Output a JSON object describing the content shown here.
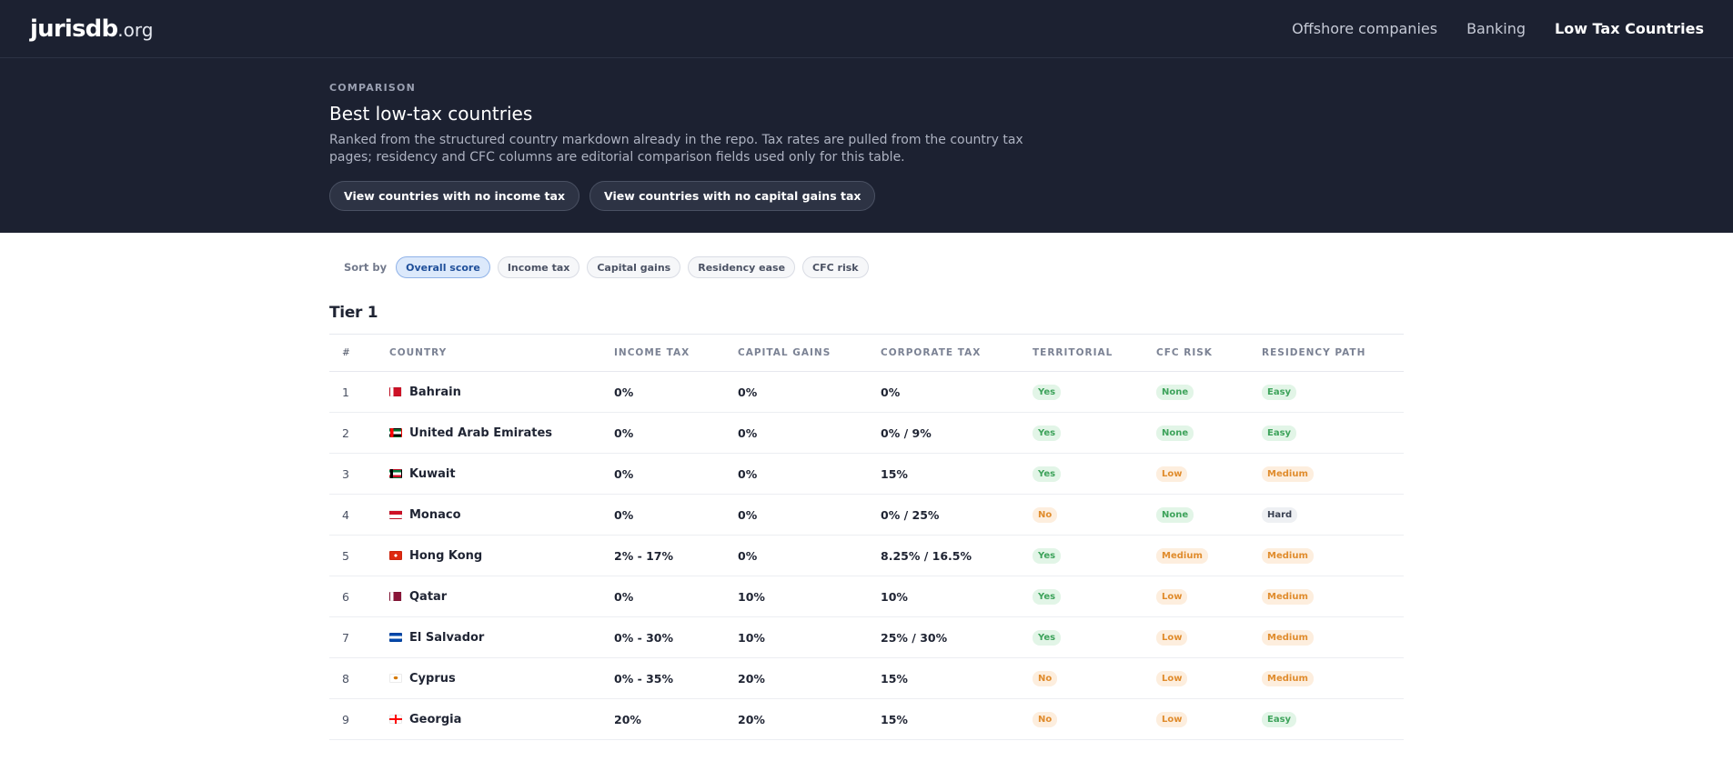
{
  "header": {
    "logo_name": "jurisdb",
    "logo_tld": ".org",
    "nav": [
      {
        "label": "Offshore companies",
        "active": false
      },
      {
        "label": "Banking",
        "active": false
      },
      {
        "label": "Low Tax Countries",
        "active": true
      }
    ]
  },
  "hero": {
    "eyebrow": "COMPARISON",
    "title": "Best low-tax countries",
    "description": "Ranked from the structured country markdown already in the repo. Tax rates are pulled from the country tax pages; residency and CFC columns are editorial comparison fields used only for this table.",
    "buttons": [
      "View countries with no income tax",
      "View countries with no capital gains tax"
    ]
  },
  "sort": {
    "label": "Sort by",
    "options": [
      "Overall score",
      "Income tax",
      "Capital gains",
      "Residency ease",
      "CFC risk"
    ],
    "selected": "Overall score"
  },
  "tier": {
    "title": "Tier 1",
    "columns": [
      "#",
      "COUNTRY",
      "INCOME TAX",
      "CAPITAL GAINS",
      "CORPORATE TAX",
      "TERRITORIAL",
      "CFC RISK",
      "RESIDENCY PATH"
    ],
    "rows": [
      {
        "rank": "1",
        "country": "Bahrain",
        "flag": "bahrain-flag-icon",
        "income": "0%",
        "capital": "0%",
        "corporate": "0%",
        "territorial": "Yes",
        "cfc": "None",
        "residency": "Easy"
      },
      {
        "rank": "2",
        "country": "United Arab Emirates",
        "flag": "uae-flag-icon",
        "income": "0%",
        "capital": "0%",
        "corporate": "0% / 9%",
        "territorial": "Yes",
        "cfc": "None",
        "residency": "Easy"
      },
      {
        "rank": "3",
        "country": "Kuwait",
        "flag": "kuwait-flag-icon",
        "income": "0%",
        "capital": "0%",
        "corporate": "15%",
        "territorial": "Yes",
        "cfc": "Low",
        "residency": "Medium"
      },
      {
        "rank": "4",
        "country": "Monaco",
        "flag": "monaco-flag-icon",
        "income": "0%",
        "capital": "0%",
        "corporate": "0% / 25%",
        "territorial": "No",
        "cfc": "None",
        "residency": "Hard"
      },
      {
        "rank": "5",
        "country": "Hong Kong",
        "flag": "hong-kong-flag-icon",
        "income": "2% - 17%",
        "capital": "0%",
        "corporate": "8.25% / 16.5%",
        "territorial": "Yes",
        "cfc": "Medium",
        "residency": "Medium"
      },
      {
        "rank": "6",
        "country": "Qatar",
        "flag": "qatar-flag-icon",
        "income": "0%",
        "capital": "10%",
        "corporate": "10%",
        "territorial": "Yes",
        "cfc": "Low",
        "residency": "Medium"
      },
      {
        "rank": "7",
        "country": "El Salvador",
        "flag": "el-salvador-flag-icon",
        "income": "0% - 30%",
        "capital": "10%",
        "corporate": "25% / 30%",
        "territorial": "Yes",
        "cfc": "Low",
        "residency": "Medium"
      },
      {
        "rank": "8",
        "country": "Cyprus",
        "flag": "cyprus-flag-icon",
        "income": "0% - 35%",
        "capital": "20%",
        "corporate": "15%",
        "territorial": "No",
        "cfc": "Low",
        "residency": "Medium"
      },
      {
        "rank": "9",
        "country": "Georgia",
        "flag": "georgia-flag-icon",
        "income": "20%",
        "capital": "20%",
        "corporate": "15%",
        "territorial": "No",
        "cfc": "Low",
        "residency": "Easy"
      }
    ]
  },
  "colors": {
    "header_bg": "#1c2131",
    "badge_green_bg": "#e2f5e7",
    "badge_green_text": "#3ea35b",
    "badge_orange_bg": "#fdeede",
    "badge_orange_text": "#e08c2d",
    "badge_gray_bg": "#eef0f3",
    "badge_gray_text": "#3a4152",
    "active_chip_bg": "#dce9fb"
  }
}
